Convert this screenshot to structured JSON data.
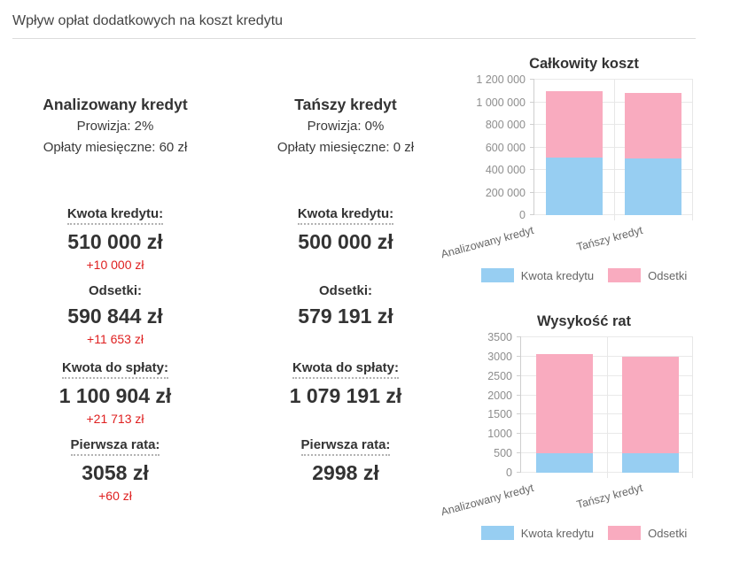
{
  "page": {
    "title": "Wpływ opłat dodatkowych na koszt kredytu"
  },
  "colors": {
    "principal_blue": "#97cef2",
    "interest_pink": "#f9abbf",
    "diff_red": "#df2020"
  },
  "columns": [
    {
      "name": "Analizowany kredyt",
      "commission": "Prowizja: 2%",
      "monthly_fees": "Opłaty miesięczne: 60 zł",
      "stats": [
        {
          "label": "Kwota kredytu:",
          "value": "510 000 zł",
          "diff": "+10 000 zł"
        },
        {
          "label": "Odsetki:",
          "value": "590 844 zł",
          "diff": "+11 653 zł"
        },
        {
          "label": "Kwota do spłaty:",
          "value": "1 100 904 zł",
          "diff": "+21 713 zł"
        },
        {
          "label": "Pierwsza rata:",
          "value": "3058 zł",
          "diff": "+60 zł"
        }
      ]
    },
    {
      "name": "Tańszy kredyt",
      "commission": "Prowizja: 0%",
      "monthly_fees": "Opłaty miesięczne: 0 zł",
      "stats": [
        {
          "label": "Kwota kredytu:",
          "value": "500 000 zł",
          "diff": ""
        },
        {
          "label": "Odsetki:",
          "value": "579 191 zł",
          "diff": ""
        },
        {
          "label": "Kwota do spłaty:",
          "value": "1 079 191 zł",
          "diff": ""
        },
        {
          "label": "Pierwsza rata:",
          "value": "2998 zł",
          "diff": ""
        }
      ]
    }
  ],
  "chart_data": [
    {
      "type": "bar",
      "stacked": true,
      "title": "Całkowity koszt",
      "categories": [
        "Analizowany kredyt",
        "Tańszy kredyt"
      ],
      "series": [
        {
          "name": "Kwota kredytu",
          "color": "#97cef2",
          "values": [
            510000,
            500000
          ]
        },
        {
          "name": "Odsetki",
          "color": "#f9abbf",
          "values": [
            590844,
            579191
          ]
        }
      ],
      "ylim": [
        0,
        1200000
      ],
      "ytick_step": 200000,
      "yticks": [
        "0",
        "200 000",
        "400 000",
        "600 000",
        "800 000",
        "1 000 000",
        "1 200 000"
      ],
      "grid": true,
      "legend_position": "bottom"
    },
    {
      "type": "bar",
      "stacked": true,
      "title": "Wysykość rat",
      "categories": [
        "Analizowany kredyt",
        "Tańszy kredyt"
      ],
      "series": [
        {
          "name": "Kwota kredytu",
          "color": "#97cef2",
          "values": [
            510,
            500
          ]
        },
        {
          "name": "Odsetki",
          "color": "#f9abbf",
          "values": [
            2548,
            2498
          ]
        }
      ],
      "ylim": [
        0,
        3500
      ],
      "ytick_step": 500,
      "yticks": [
        "0",
        "500",
        "1000",
        "1500",
        "2000",
        "2500",
        "3000",
        "3500"
      ],
      "grid": true,
      "legend_position": "bottom"
    }
  ]
}
